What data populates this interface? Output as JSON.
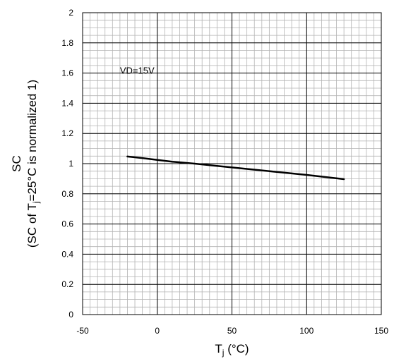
{
  "chart_data": {
    "type": "line",
    "title": "",
    "xlabel_main": "T",
    "xlabel_sub": "j",
    "xlabel_unit": " (°C)",
    "ylabel_line1": "SC",
    "ylabel_line2_pre": "(SC of T",
    "ylabel_line2_sub": "j",
    "ylabel_line2_post": "=25°C is normalized 1)",
    "xlim": [
      -50,
      150
    ],
    "ylim": [
      0,
      2
    ],
    "x_ticks": [
      -50,
      0,
      50,
      100,
      150
    ],
    "x_tick_labels": [
      "-50",
      "0",
      "50",
      "100",
      "150"
    ],
    "y_ticks": [
      0,
      0.2,
      0.4,
      0.6,
      0.8,
      1.0,
      1.2,
      1.4,
      1.6,
      1.8,
      2.0
    ],
    "y_tick_labels": [
      "0",
      "0.2",
      "0.4",
      "0.6",
      "0.8",
      "1",
      "1.2",
      "1.4",
      "1.6",
      "1.8",
      "2"
    ],
    "grid": true,
    "annotation": "VD=15V",
    "series": [
      {
        "x": [
          -20,
          -10,
          0,
          10,
          25,
          40,
          60,
          80,
          100,
          125
        ],
        "y": [
          1.047,
          1.037,
          1.025,
          1.013,
          1.0,
          0.985,
          0.965,
          0.945,
          0.925,
          0.897
        ]
      }
    ],
    "colors": {
      "line": "#000000",
      "major_grid": "#000000",
      "minor_grid": "#b3b3b3"
    }
  }
}
